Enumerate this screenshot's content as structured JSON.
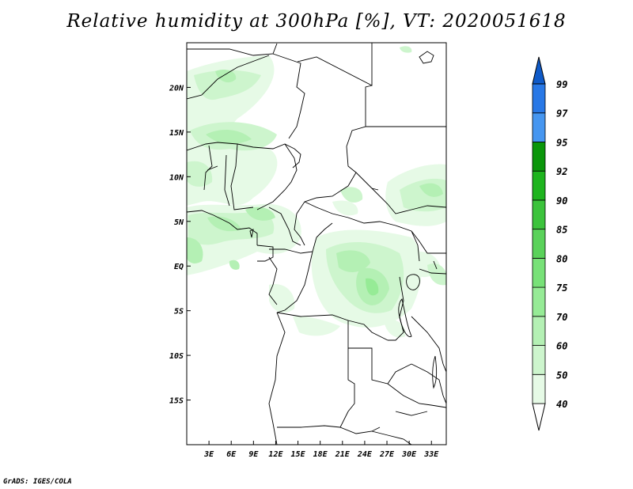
{
  "title": "Relative humidity at 300hPa [%], VT: 2020051618",
  "footer": "GrADS: IGES/COLA",
  "map": {
    "lon_range": [
      0,
      35
    ],
    "lat_range": [
      -20,
      25
    ],
    "lon_ticks": [
      {
        "value": 3,
        "label": "3E"
      },
      {
        "value": 6,
        "label": "6E"
      },
      {
        "value": 9,
        "label": "9E"
      },
      {
        "value": 12,
        "label": "12E"
      },
      {
        "value": 15,
        "label": "15E"
      },
      {
        "value": 18,
        "label": "18E"
      },
      {
        "value": 21,
        "label": "21E"
      },
      {
        "value": 24,
        "label": "24E"
      },
      {
        "value": 27,
        "label": "27E"
      },
      {
        "value": 30,
        "label": "30E"
      },
      {
        "value": 33,
        "label": "33E"
      }
    ],
    "lat_ticks": [
      {
        "value": 20,
        "label": "20N"
      },
      {
        "value": 15,
        "label": "15N"
      },
      {
        "value": 10,
        "label": "10N"
      },
      {
        "value": 5,
        "label": "5N"
      },
      {
        "value": 0,
        "label": "EQ"
      },
      {
        "value": -5,
        "label": "5S"
      },
      {
        "value": -10,
        "label": "10S"
      },
      {
        "value": -15,
        "label": "15S"
      }
    ]
  },
  "colorbar": {
    "levels": [
      "40",
      "50",
      "60",
      "70",
      "75",
      "80",
      "85",
      "90",
      "92",
      "95",
      "97",
      "99"
    ],
    "colors": [
      "#ffffff",
      "#e6fae6",
      "#cdf5cd",
      "#b4f0b4",
      "#96eb96",
      "#78e178",
      "#5ad25a",
      "#3cc33c",
      "#1eb41e",
      "#0a960a",
      "#4696f0",
      "#2878e6",
      "#0f5ac8"
    ]
  }
}
